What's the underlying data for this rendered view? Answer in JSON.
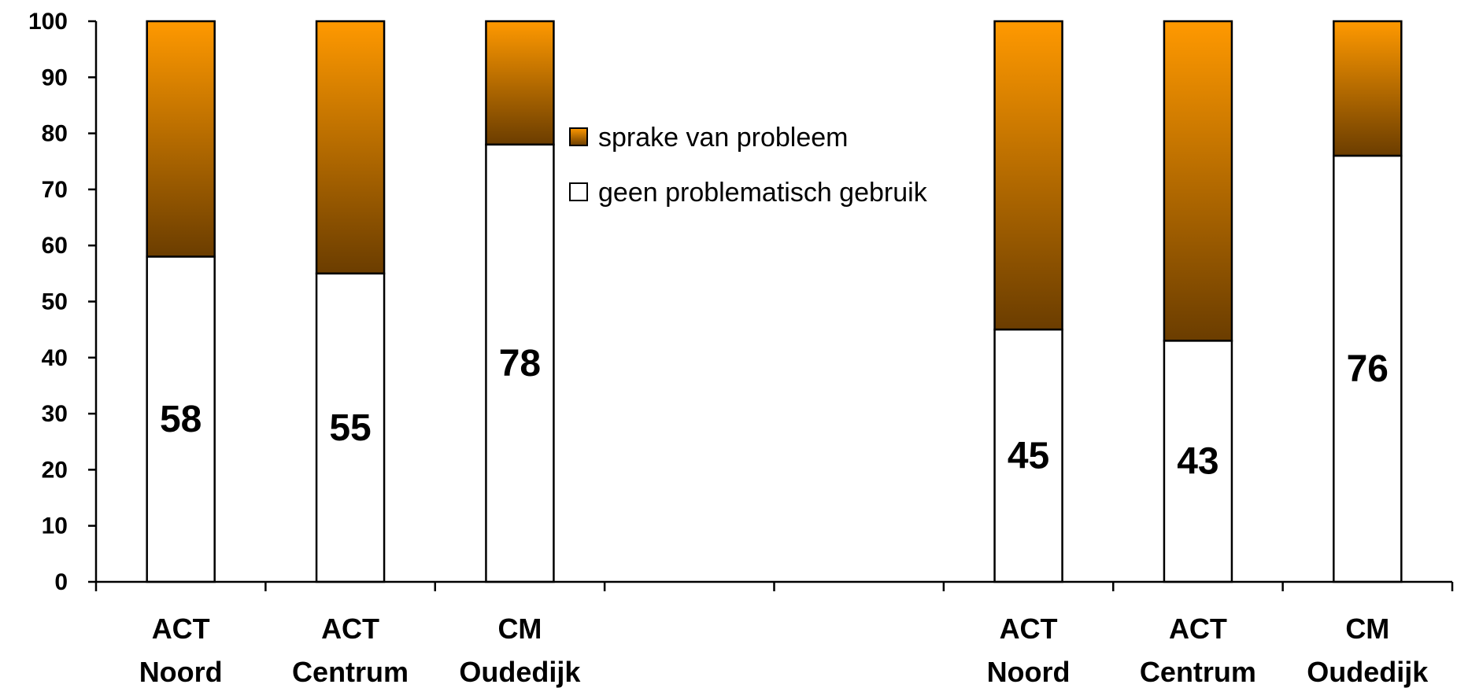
{
  "chart_data": {
    "type": "bar",
    "stacked": true,
    "ylim": [
      0,
      100
    ],
    "yticks": [
      0,
      10,
      20,
      30,
      40,
      50,
      60,
      70,
      80,
      90,
      100
    ],
    "categories": [
      [
        "ACT",
        "Noord"
      ],
      [
        "ACT",
        "Centrum"
      ],
      [
        "CM",
        "Oudedijk"
      ],
      [
        "",
        ""
      ],
      [
        "",
        ""
      ],
      [
        "ACT",
        "Noord"
      ],
      [
        "ACT",
        "Centrum"
      ],
      [
        "CM",
        "Oudedijk"
      ]
    ],
    "series": [
      {
        "name": "geen problematisch gebruik",
        "values": [
          58,
          55,
          78,
          null,
          null,
          45,
          43,
          76
        ],
        "color": "#ffffff",
        "labeled": true
      },
      {
        "name": "sprake van probleem",
        "values": [
          42,
          45,
          22,
          null,
          null,
          55,
          57,
          24
        ],
        "color_top": "#ff9900",
        "color_bottom": "#6b3d00"
      }
    ],
    "legend_position": "center-top",
    "grid": false
  }
}
